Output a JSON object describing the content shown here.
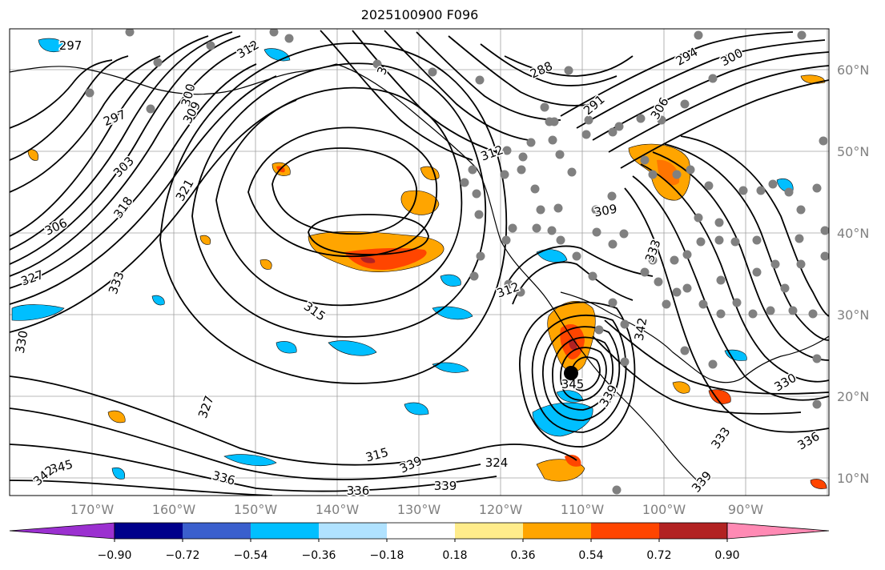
{
  "title": "2025100900 F096",
  "latitude_labels": [
    "60°N",
    "50°N",
    "40°N",
    "30°N",
    "20°N",
    "10°N"
  ],
  "longitude_labels": [
    "170°W",
    "160°W",
    "150°W",
    "140°W",
    "130°W",
    "120°W",
    "110°W",
    "100°W",
    "90°W"
  ],
  "colorbar": {
    "tick_labels": [
      "−0.90",
      "−0.72",
      "−0.54",
      "−0.36",
      "−0.18",
      "0.18",
      "0.36",
      "0.54",
      "0.72",
      "0.90"
    ],
    "colors": [
      "#9b30d0",
      "#00008b",
      "#3a5fcd",
      "#00bfff",
      "#b0e2ff",
      "#ffffff",
      "#ffec8b",
      "#ffa500",
      "#ff4500",
      "#b22222",
      "#ff8ab4"
    ]
  },
  "contour_labels": [
    "297",
    "312",
    "3",
    "288",
    "294",
    "300",
    "300",
    "309",
    "297",
    "291",
    "306",
    "303",
    "321",
    "312",
    "306",
    "318",
    "309",
    "327",
    "333",
    "315",
    "312",
    "333",
    "330",
    "345",
    "342",
    "330",
    "327",
    "315",
    "324",
    "345",
    "336",
    "339",
    "339",
    "336",
    "333",
    "336",
    "339",
    "342",
    "339"
  ],
  "hurricane_marker": "storm-center",
  "colors": {
    "contour": "#000000",
    "grid": "#a0a0a0",
    "station_dot": "#808080",
    "coast": "#000000"
  }
}
